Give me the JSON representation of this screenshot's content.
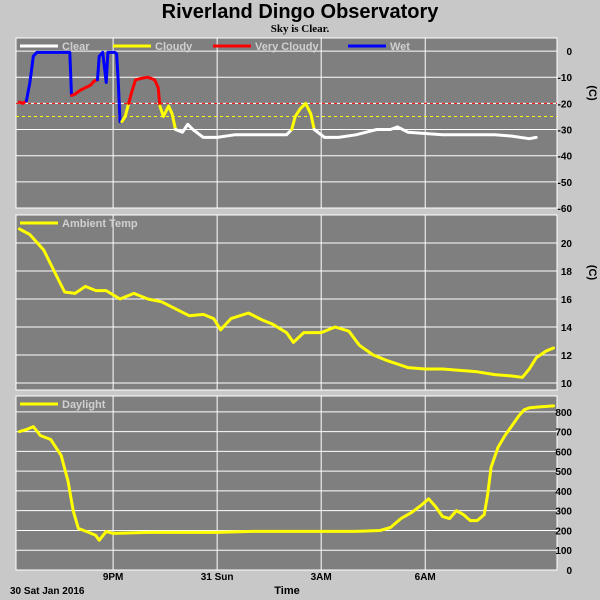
{
  "header": {
    "title": "Riverland Dingo Observatory",
    "subtitle": "Sky is Clear."
  },
  "colors": {
    "background": "#c8c8c8",
    "plot": "#7f7f7f",
    "grid": "#ffffff",
    "clear": "#ffffff",
    "cloudy": "#ffff00",
    "very_cloudy": "#ff0000",
    "wet": "#0000ff"
  },
  "chart_data": [
    {
      "type": "line",
      "name": "sky-temperature",
      "unit": "(C)",
      "ylim": [
        -60,
        5
      ],
      "yticks": [
        0,
        -10,
        -20,
        -30,
        -40,
        -50,
        -60
      ],
      "grid": true,
      "legend_placement": "top-left",
      "legend": [
        {
          "label": "Clear",
          "color": "#ffffff"
        },
        {
          "label": "Cloudy",
          "color": "#ffff00"
        },
        {
          "label": "Very Cloudy",
          "color": "#ff0000"
        },
        {
          "label": "Wet",
          "color": "#0000ff"
        }
      ],
      "thresholds": [
        {
          "value": -20,
          "color": "#ff0000"
        },
        {
          "value": -25,
          "color": "#ffff00"
        }
      ],
      "series": [
        {
          "name": "Very Cloudy",
          "color": "#ff0000",
          "points": [
            [
              18.3,
              -19.5
            ],
            [
              18.4,
              -20
            ],
            [
              18.5,
              -19
            ]
          ]
        },
        {
          "name": "Wet",
          "color": "#0000ff",
          "points": [
            [
              18.5,
              -19
            ],
            [
              18.6,
              -12
            ],
            [
              18.7,
              -2
            ],
            [
              18.8,
              -0.5
            ],
            [
              18.9,
              -0.5
            ],
            [
              19.2,
              -0.5
            ],
            [
              19.5,
              -0.5
            ],
            [
              19.75,
              -0.5
            ],
            [
              19.8,
              -17
            ]
          ]
        },
        {
          "name": "Very Cloudy",
          "color": "#ff0000",
          "points": [
            [
              19.8,
              -17
            ],
            [
              19.9,
              -16.5
            ],
            [
              20.05,
              -15
            ],
            [
              20.2,
              -14
            ],
            [
              20.35,
              -13
            ],
            [
              20.45,
              -11.5
            ],
            [
              20.55,
              -11
            ]
          ]
        },
        {
          "name": "Wet",
          "color": "#0000ff",
          "points": [
            [
              20.55,
              -11
            ],
            [
              20.6,
              -2
            ],
            [
              20.7,
              -0.5
            ],
            [
              20.8,
              -12
            ],
            [
              20.85,
              -0.5
            ],
            [
              20.95,
              -0.5
            ],
            [
              21.05,
              -0.5
            ],
            [
              21.1,
              -1
            ],
            [
              21.15,
              -12
            ],
            [
              21.2,
              -27
            ],
            [
              21.25,
              -27
            ]
          ]
        },
        {
          "name": "Cloudy",
          "color": "#ffff00",
          "points": [
            [
              21.25,
              -27
            ],
            [
              21.35,
              -25
            ],
            [
              21.45,
              -20
            ]
          ]
        },
        {
          "name": "Very Cloudy",
          "color": "#ff0000",
          "points": [
            [
              21.45,
              -20
            ],
            [
              21.55,
              -15
            ],
            [
              21.65,
              -11
            ],
            [
              21.8,
              -10.5
            ],
            [
              22.0,
              -10
            ],
            [
              22.2,
              -11
            ],
            [
              22.3,
              -14
            ],
            [
              22.35,
              -21
            ]
          ]
        },
        {
          "name": "Cloudy",
          "color": "#ffff00",
          "points": [
            [
              22.35,
              -21
            ],
            [
              22.45,
              -25
            ],
            [
              22.6,
              -21
            ],
            [
              22.7,
              -24
            ],
            [
              22.8,
              -30
            ]
          ]
        },
        {
          "name": "Clear",
          "color": "#ffffff",
          "points": [
            [
              22.8,
              -30
            ],
            [
              23.0,
              -31
            ],
            [
              23.15,
              -28
            ],
            [
              23.3,
              -30
            ],
            [
              23.6,
              -33
            ],
            [
              24.0,
              -33
            ],
            [
              24.5,
              -32
            ],
            [
              25.0,
              -32
            ],
            [
              25.5,
              -32
            ],
            [
              26.0,
              -32
            ],
            [
              26.15,
              -30
            ]
          ]
        },
        {
          "name": "Cloudy",
          "color": "#ffff00",
          "points": [
            [
              26.15,
              -30
            ],
            [
              26.25,
              -25
            ],
            [
              26.4,
              -22
            ],
            [
              26.55,
              -20
            ],
            [
              26.7,
              -24
            ],
            [
              26.8,
              -30
            ]
          ]
        },
        {
          "name": "Clear",
          "color": "#ffffff",
          "points": [
            [
              26.8,
              -30
            ],
            [
              27.1,
              -33
            ],
            [
              27.5,
              -33
            ],
            [
              28.0,
              -32
            ],
            [
              28.3,
              -31
            ],
            [
              28.6,
              -30
            ],
            [
              29.0,
              -30
            ],
            [
              29.2,
              -29
            ],
            [
              29.5,
              -31
            ],
            [
              30.0,
              -31.5
            ],
            [
              30.5,
              -32
            ],
            [
              31.0,
              -32
            ],
            [
              31.5,
              -32
            ],
            [
              32.0,
              -32
            ],
            [
              32.5,
              -32.5
            ],
            [
              33.0,
              -33.5
            ],
            [
              33.2,
              -33
            ]
          ]
        }
      ]
    },
    {
      "type": "line",
      "name": "ambient-temperature",
      "unit": "(C)",
      "ylim": [
        9.5,
        22
      ],
      "yticks": [
        10,
        12,
        14,
        16,
        18,
        20
      ],
      "grid": true,
      "legend_placement": "top-left",
      "legend": [
        {
          "label": "Ambient Temp",
          "color": "#ffff00"
        }
      ],
      "series": [
        {
          "name": "Ambient Temp",
          "color": "#ffff00",
          "points": [
            [
              18.3,
              21
            ],
            [
              18.6,
              20.6
            ],
            [
              19.0,
              19.5
            ],
            [
              19.3,
              18
            ],
            [
              19.6,
              16.5
            ],
            [
              19.9,
              16.4
            ],
            [
              20.2,
              16.9
            ],
            [
              20.5,
              16.6
            ],
            [
              20.8,
              16.6
            ],
            [
              21.2,
              16
            ],
            [
              21.6,
              16.4
            ],
            [
              22.0,
              16
            ],
            [
              22.4,
              15.8
            ],
            [
              22.8,
              15.3
            ],
            [
              23.2,
              14.8
            ],
            [
              23.6,
              14.9
            ],
            [
              23.9,
              14.6
            ],
            [
              24.1,
              13.8
            ],
            [
              24.4,
              14.6
            ],
            [
              24.9,
              15
            ],
            [
              25.3,
              14.5
            ],
            [
              25.6,
              14.2
            ],
            [
              26.0,
              13.6
            ],
            [
              26.2,
              12.9
            ],
            [
              26.5,
              13.6
            ],
            [
              27.0,
              13.6
            ],
            [
              27.4,
              14
            ],
            [
              27.8,
              13.7
            ],
            [
              28.1,
              12.7
            ],
            [
              28.5,
              12
            ],
            [
              28.9,
              11.6
            ],
            [
              29.5,
              11.1
            ],
            [
              30.0,
              11
            ],
            [
              30.5,
              11
            ],
            [
              31.0,
              10.9
            ],
            [
              31.5,
              10.8
            ],
            [
              32.0,
              10.6
            ],
            [
              32.5,
              10.5
            ],
            [
              32.8,
              10.4
            ],
            [
              33.0,
              11
            ],
            [
              33.2,
              11.8
            ],
            [
              33.5,
              12.3
            ],
            [
              33.7,
              12.5
            ]
          ]
        }
      ]
    },
    {
      "type": "line",
      "name": "daylight",
      "unit": "",
      "ylim": [
        0,
        880
      ],
      "yticks": [
        0,
        100,
        200,
        300,
        400,
        500,
        600,
        700,
        800
      ],
      "grid": true,
      "legend_placement": "top-left",
      "legend": [
        {
          "label": "Daylight",
          "color": "#ffff00"
        }
      ],
      "series": [
        {
          "name": "Daylight",
          "color": "#ffff00",
          "points": [
            [
              18.3,
              700
            ],
            [
              18.5,
              710
            ],
            [
              18.7,
              725
            ],
            [
              18.9,
              680
            ],
            [
              19.2,
              660
            ],
            [
              19.5,
              580
            ],
            [
              19.7,
              450
            ],
            [
              19.85,
              300
            ],
            [
              20.0,
              210
            ],
            [
              20.3,
              190
            ],
            [
              20.5,
              175
            ],
            [
              20.6,
              150
            ],
            [
              20.8,
              195
            ],
            [
              21.0,
              185
            ],
            [
              22.0,
              190
            ],
            [
              23.0,
              190
            ],
            [
              24.0,
              190
            ],
            [
              25.0,
              195
            ],
            [
              26.0,
              195
            ],
            [
              27.0,
              195
            ],
            [
              28.0,
              195
            ],
            [
              28.7,
              200
            ],
            [
              29.0,
              215
            ],
            [
              29.3,
              260
            ],
            [
              29.6,
              290
            ],
            [
              29.9,
              330
            ],
            [
              30.1,
              360
            ],
            [
              30.3,
              320
            ],
            [
              30.5,
              270
            ],
            [
              30.7,
              260
            ],
            [
              30.9,
              300
            ],
            [
              31.1,
              280
            ],
            [
              31.3,
              250
            ],
            [
              31.5,
              250
            ],
            [
              31.7,
              280
            ],
            [
              31.8,
              380
            ],
            [
              31.9,
              520
            ],
            [
              32.1,
              620
            ],
            [
              32.3,
              680
            ],
            [
              32.5,
              730
            ],
            [
              32.7,
              780
            ],
            [
              32.85,
              810
            ],
            [
              33.0,
              820
            ],
            [
              33.3,
              825
            ],
            [
              33.7,
              830
            ]
          ]
        }
      ]
    }
  ],
  "x_axis": {
    "range": [
      18.2,
      33.8
    ],
    "ticks": [
      {
        "value": 21,
        "label": "9PM"
      },
      {
        "value": 24,
        "label": "31 Sun"
      },
      {
        "value": 27,
        "label": "3AM"
      },
      {
        "value": 30,
        "label": "6AM"
      }
    ],
    "date_label": "30 Sat Jan 2016",
    "xlabel": "Time"
  }
}
